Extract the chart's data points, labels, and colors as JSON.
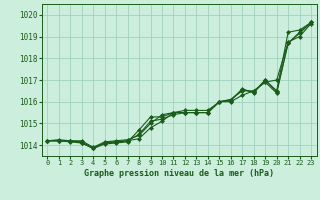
{
  "title": "Graphe pression niveau de la mer (hPa)",
  "background_color": "#cceedd",
  "plot_bg_color": "#cceedd",
  "grid_color": "#99ccbb",
  "line_color": "#1a5c1a",
  "marker_color": "#1a5c1a",
  "xlim": [
    -0.5,
    23.5
  ],
  "ylim": [
    1013.5,
    1020.5
  ],
  "yticks": [
    1014,
    1015,
    1016,
    1017,
    1018,
    1019,
    1020
  ],
  "xticks": [
    0,
    1,
    2,
    3,
    4,
    5,
    6,
    7,
    8,
    9,
    10,
    11,
    12,
    13,
    14,
    15,
    16,
    17,
    18,
    19,
    20,
    21,
    22,
    23
  ],
  "series": [
    [
      1014.2,
      1014.2,
      1014.2,
      1014.15,
      1013.85,
      1014.1,
      1014.15,
      1014.2,
      1014.3,
      1014.8,
      1015.1,
      1015.5,
      1015.5,
      1015.5,
      1015.5,
      1016.0,
      1016.0,
      1016.3,
      1016.5,
      1016.9,
      1017.0,
      1018.75,
      1019.0,
      1019.6
    ],
    [
      1014.2,
      1014.2,
      1014.2,
      1014.2,
      1013.9,
      1014.15,
      1014.2,
      1014.25,
      1014.45,
      1015.0,
      1015.4,
      1015.5,
      1015.6,
      1015.6,
      1015.6,
      1016.0,
      1016.1,
      1016.55,
      1016.45,
      1017.0,
      1016.5,
      1019.2,
      1019.3,
      1019.65
    ],
    [
      1014.2,
      1014.25,
      1014.2,
      1014.1,
      1013.85,
      1014.05,
      1014.1,
      1014.15,
      1014.7,
      1015.3,
      1015.3,
      1015.5,
      1015.5,
      1015.5,
      1015.5,
      1016.0,
      1016.1,
      1016.5,
      1016.5,
      1016.9,
      1016.4,
      1018.7,
      1019.15,
      1019.65
    ],
    [
      1014.2,
      1014.2,
      1014.15,
      1014.1,
      1013.85,
      1014.1,
      1014.15,
      1014.2,
      1014.5,
      1015.1,
      1015.2,
      1015.4,
      1015.5,
      1015.5,
      1015.5,
      1016.0,
      1016.05,
      1016.6,
      1016.4,
      1017.0,
      1016.45,
      1018.7,
      1019.2,
      1019.65
    ]
  ]
}
